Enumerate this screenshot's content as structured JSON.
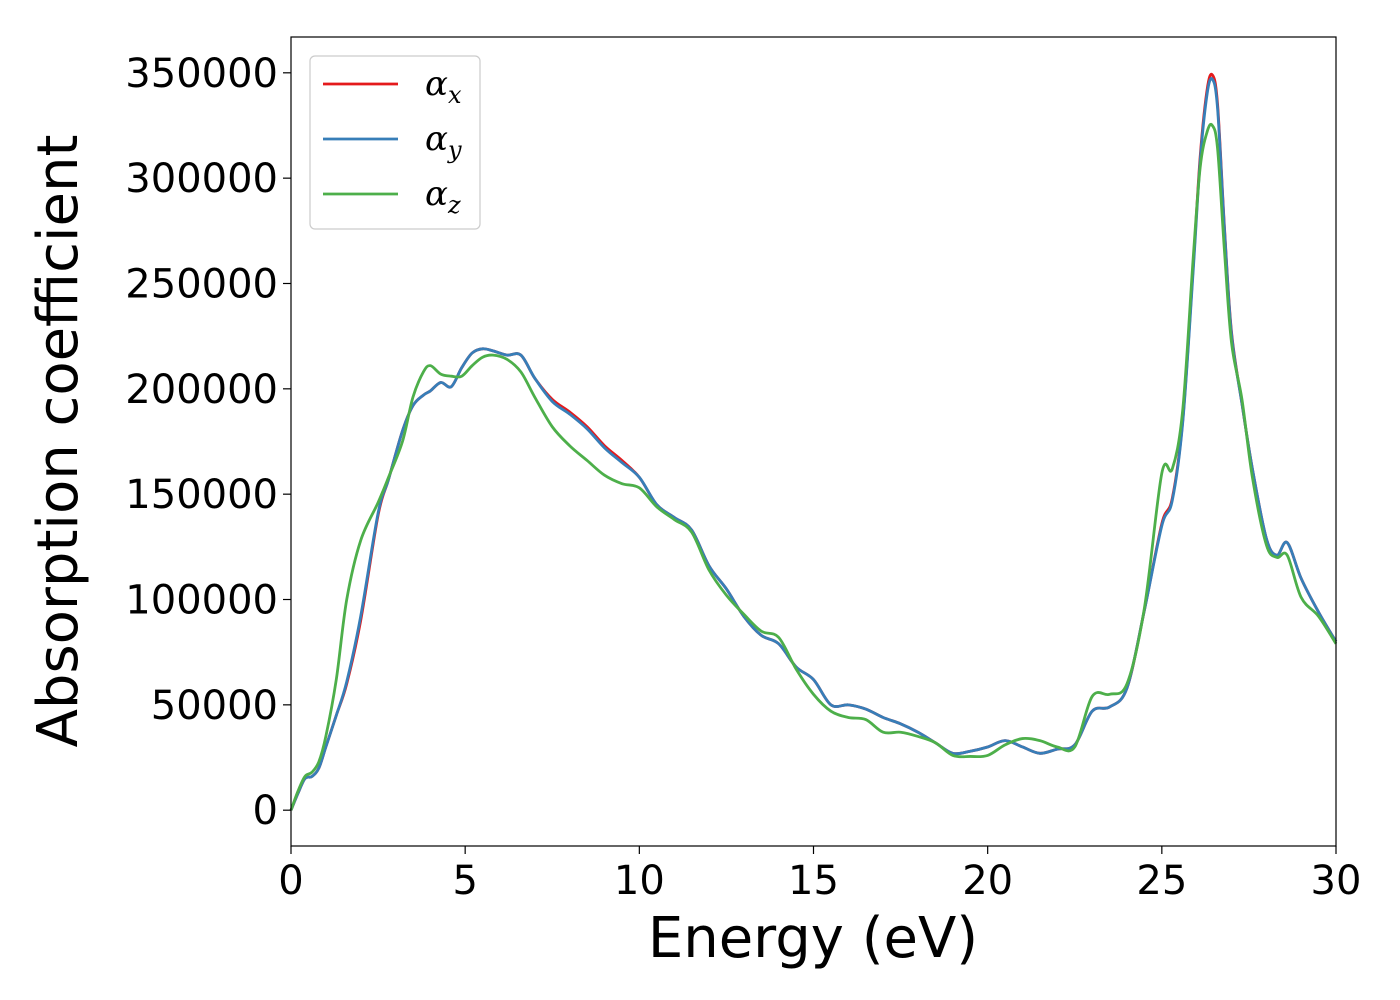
{
  "chart_data": {
    "type": "line",
    "xlabel": "Energy (eV)",
    "ylabel": "Absorption coefficient",
    "xlim": [
      0,
      30
    ],
    "ylim": [
      -17000,
      367000
    ],
    "xticks": [
      0,
      5,
      10,
      15,
      20,
      25,
      30
    ],
    "xtick_labels": [
      "0",
      "5",
      "10",
      "15",
      "20",
      "25",
      "30"
    ],
    "yticks": [
      0,
      50000,
      100000,
      150000,
      200000,
      250000,
      300000,
      350000
    ],
    "ytick_labels": [
      "0",
      "50000",
      "100000",
      "150000",
      "200000",
      "250000",
      "300000",
      "350000"
    ],
    "grid": false,
    "legend_position": "top-left",
    "series": [
      {
        "name": "α",
        "subscript": "x",
        "color": "#e41a1c",
        "x": [
          0,
          0.2,
          0.4,
          0.6,
          0.8,
          1.0,
          1.3,
          1.6,
          2.0,
          2.5,
          2.8,
          3.2,
          3.5,
          3.8,
          4.0,
          4.3,
          4.6,
          4.9,
          5.2,
          5.5,
          5.8,
          6.2,
          6.6,
          7.0,
          7.5,
          8.0,
          8.5,
          9.0,
          9.5,
          10.0,
          10.5,
          11.0,
          11.5,
          12.0,
          12.5,
          13.0,
          13.5,
          14.0,
          14.5,
          15.0,
          15.5,
          16.0,
          16.5,
          17.0,
          17.5,
          18.0,
          18.5,
          19.0,
          19.5,
          20.0,
          20.5,
          21.0,
          21.5,
          22.0,
          22.5,
          23.0,
          23.5,
          24.0,
          24.5,
          25.0,
          25.3,
          25.6,
          25.9,
          26.1,
          26.3,
          26.45,
          26.6,
          26.8,
          27.0,
          27.3,
          27.6,
          28.0,
          28.3,
          28.6,
          29.0,
          29.5,
          30.0
        ],
        "values": [
          0,
          8000,
          15000,
          16000,
          20000,
          30000,
          45000,
          60000,
          90000,
          140000,
          157000,
          180000,
          192000,
          197000,
          199000,
          203000,
          201000,
          210000,
          217000,
          219000,
          218000,
          216000,
          216000,
          205000,
          195000,
          189000,
          182000,
          173000,
          166000,
          158000,
          145000,
          139000,
          133000,
          116000,
          105000,
          92000,
          83000,
          79000,
          68000,
          62000,
          50000,
          50000,
          48000,
          44000,
          41000,
          37000,
          32000,
          27000,
          28000,
          30000,
          33000,
          30000,
          27000,
          29000,
          31000,
          47000,
          49000,
          58000,
          95000,
          136000,
          148000,
          185000,
          258000,
          310000,
          342000,
          349000,
          335000,
          276000,
          227000,
          193000,
          162000,
          129000,
          121000,
          127000,
          110000,
          94000,
          80000
        ]
      },
      {
        "name": "α",
        "subscript": "y",
        "color": "#377eb8",
        "x": [
          0,
          0.2,
          0.4,
          0.6,
          0.8,
          1.0,
          1.3,
          1.6,
          2.0,
          2.5,
          2.8,
          3.2,
          3.5,
          3.8,
          4.0,
          4.3,
          4.6,
          4.9,
          5.2,
          5.5,
          5.8,
          6.2,
          6.6,
          7.0,
          7.5,
          8.0,
          8.5,
          9.0,
          9.5,
          10.0,
          10.5,
          11.0,
          11.5,
          12.0,
          12.5,
          13.0,
          13.5,
          14.0,
          14.5,
          15.0,
          15.5,
          16.0,
          16.5,
          17.0,
          17.5,
          18.0,
          18.5,
          19.0,
          19.5,
          20.0,
          20.5,
          21.0,
          21.5,
          22.0,
          22.5,
          23.0,
          23.5,
          24.0,
          24.5,
          25.0,
          25.3,
          25.6,
          25.9,
          26.1,
          26.3,
          26.45,
          26.6,
          26.8,
          27.0,
          27.3,
          27.6,
          28.0,
          28.3,
          28.6,
          29.0,
          29.5,
          30.0
        ],
        "values": [
          0,
          8000,
          15000,
          16000,
          20000,
          30000,
          45000,
          61000,
          92000,
          141000,
          157000,
          180000,
          192000,
          197000,
          199000,
          203000,
          201000,
          210000,
          217000,
          219000,
          218000,
          216000,
          216000,
          205000,
          194000,
          188000,
          181000,
          172000,
          165000,
          158000,
          145000,
          139000,
          133000,
          116000,
          105000,
          92000,
          83000,
          79000,
          68000,
          62000,
          50000,
          50000,
          48000,
          44000,
          41000,
          37000,
          32000,
          27000,
          28000,
          30000,
          33000,
          30000,
          27000,
          29000,
          31000,
          47000,
          49000,
          58000,
          95000,
          135000,
          147000,
          184000,
          256000,
          308000,
          340000,
          347000,
          333000,
          275000,
          226000,
          193000,
          162000,
          129000,
          121000,
          127000,
          110000,
          94000,
          80000
        ]
      },
      {
        "name": "α",
        "subscript": "z",
        "color": "#4daf4a",
        "x": [
          0,
          0.2,
          0.4,
          0.6,
          0.8,
          1.0,
          1.3,
          1.6,
          2.0,
          2.5,
          2.8,
          3.2,
          3.5,
          3.8,
          4.0,
          4.3,
          4.6,
          4.9,
          5.2,
          5.5,
          5.8,
          6.2,
          6.6,
          7.0,
          7.5,
          8.0,
          8.5,
          9.0,
          9.5,
          10.0,
          10.5,
          11.0,
          11.5,
          12.0,
          12.5,
          13.0,
          13.5,
          14.0,
          14.5,
          15.0,
          15.5,
          16.0,
          16.5,
          17.0,
          17.5,
          18.0,
          18.5,
          19.0,
          19.5,
          20.0,
          20.5,
          21.0,
          21.5,
          22.0,
          22.5,
          23.0,
          23.5,
          24.0,
          24.5,
          25.0,
          25.3,
          25.6,
          25.9,
          26.1,
          26.3,
          26.45,
          26.6,
          26.8,
          27.0,
          27.3,
          27.6,
          28.0,
          28.3,
          28.6,
          29.0,
          29.5,
          30.0
        ],
        "values": [
          0,
          9000,
          16000,
          18000,
          23000,
          35000,
          62000,
          100000,
          128000,
          146000,
          158000,
          175000,
          196000,
          208000,
          211000,
          207000,
          206000,
          206000,
          211000,
          215000,
          216000,
          214000,
          208000,
          196000,
          182000,
          173000,
          166000,
          159000,
          155000,
          153000,
          144000,
          138000,
          132000,
          114000,
          102000,
          93000,
          85000,
          82000,
          67000,
          55000,
          47000,
          44000,
          43000,
          37000,
          37000,
          35000,
          32000,
          26000,
          25500,
          26000,
          31000,
          34000,
          33000,
          30000,
          30000,
          54000,
          55000,
          60000,
          96000,
          160000,
          162000,
          190000,
          262000,
          305000,
          322000,
          325000,
          314000,
          265000,
          222000,
          195000,
          158000,
          126000,
          120000,
          121000,
          101000,
          92000,
          79000
        ]
      }
    ]
  }
}
